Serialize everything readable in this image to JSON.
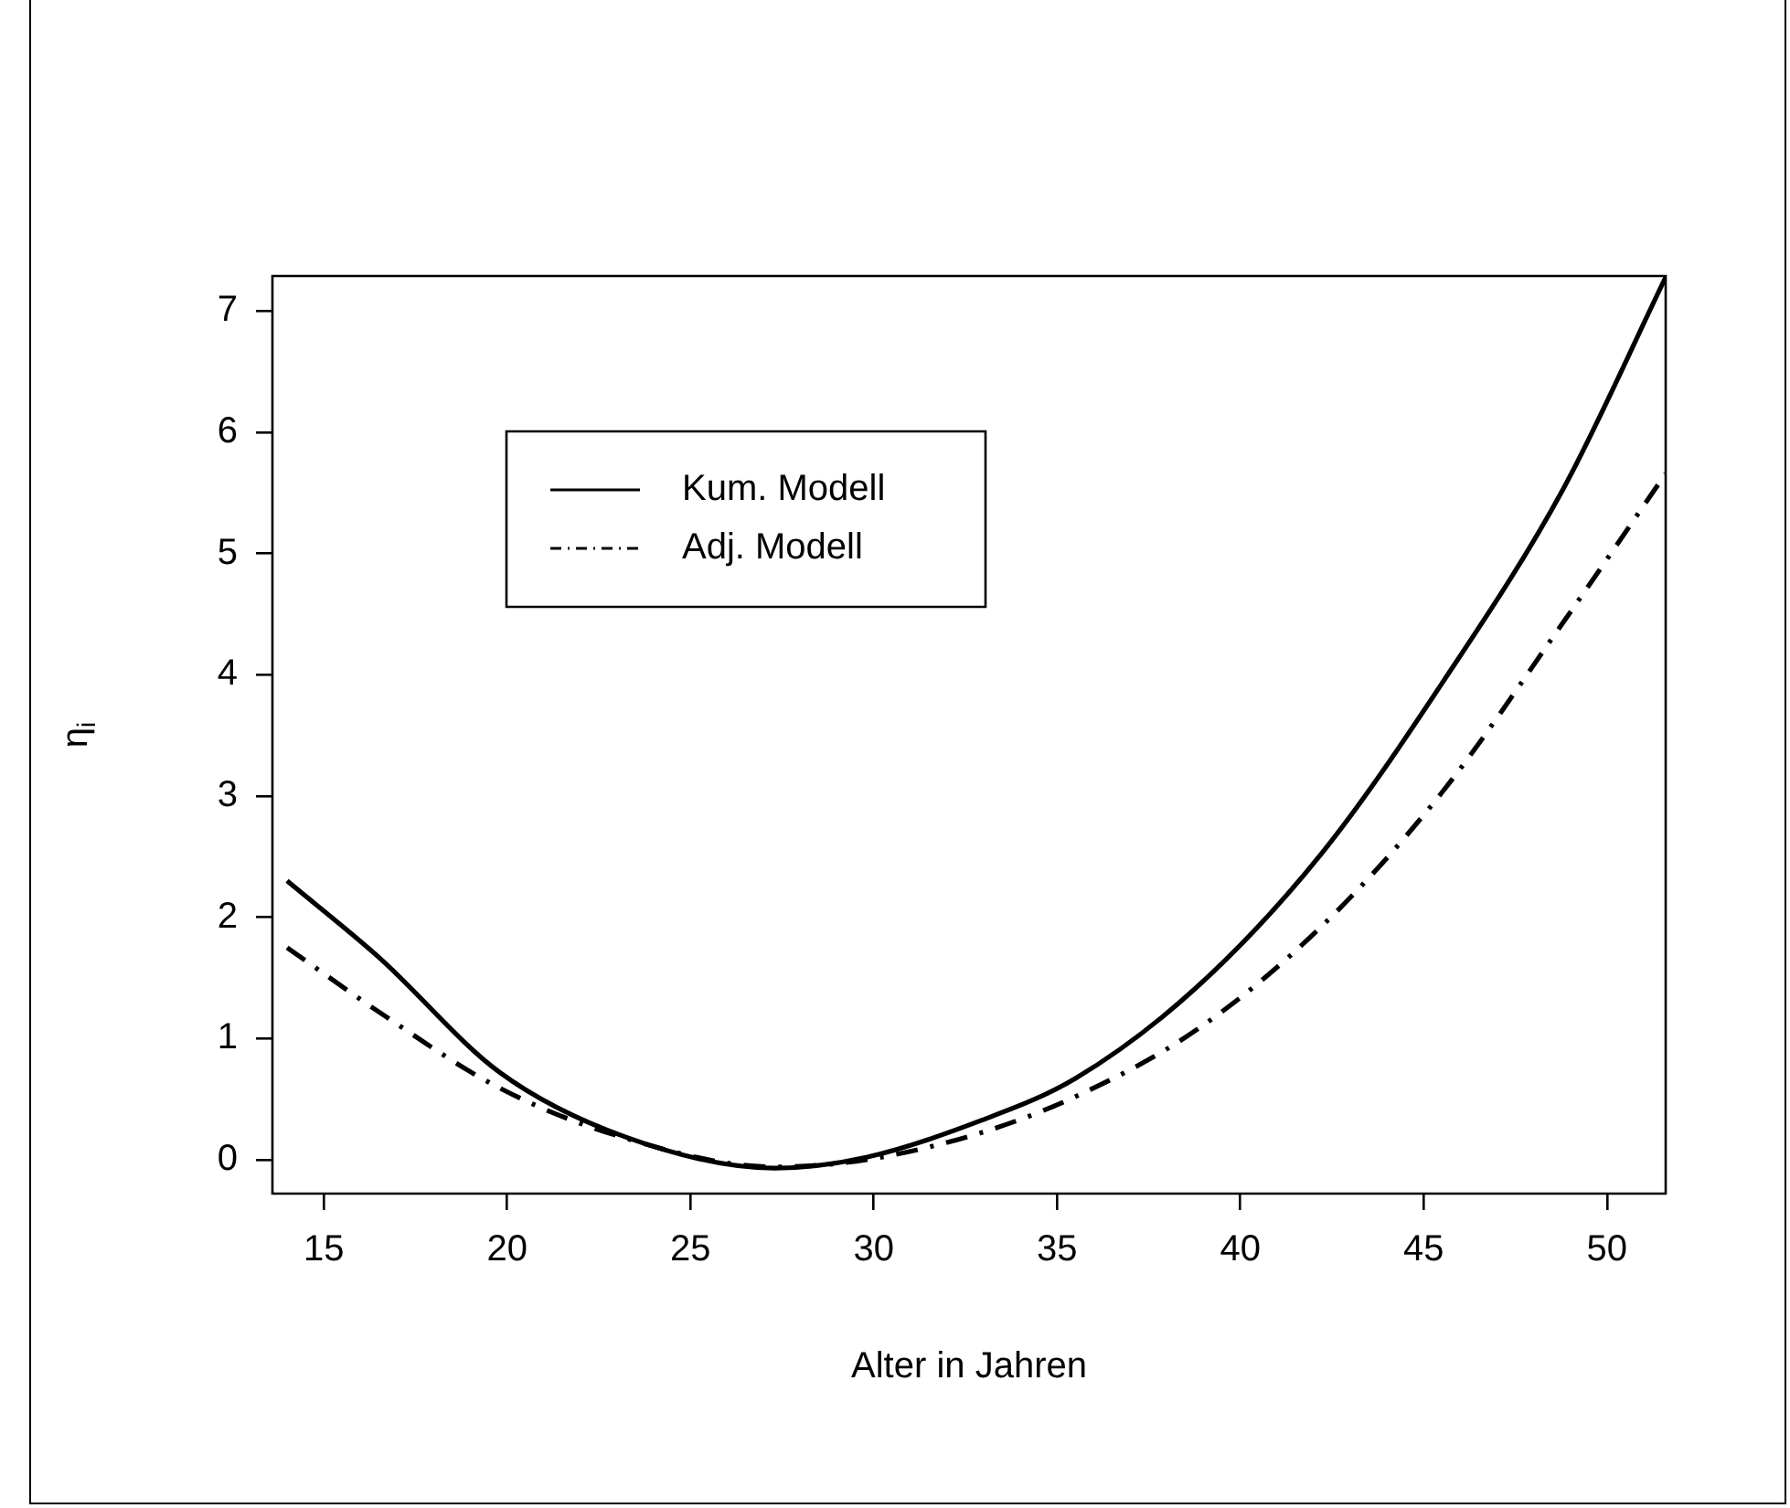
{
  "chart_data": {
    "type": "line",
    "xlabel": "Alter in Jahren",
    "ylabel": "η$_{i}$",
    "xlim": [
      13.6,
      51.6
    ],
    "ylim": [
      -0.28,
      7.29
    ],
    "xticks": [
      15,
      20,
      25,
      30,
      35,
      40,
      45,
      50
    ],
    "yticks": [
      0,
      1,
      2,
      3,
      4,
      5,
      6,
      7
    ],
    "grid": false,
    "legend": "top left",
    "marker": "none",
    "series": [
      {
        "name": "Kum. Modell",
        "color": "#000000",
        "line_style": "solid",
        "x": [
          14.0,
          16.5,
          19.8,
          23.2,
          27.3,
          29.8,
          32.9,
          35.5,
          38.8,
          42.2,
          45.5,
          48.8,
          51.6
        ],
        "values": [
          2.3,
          1.67,
          0.72,
          0.19,
          -0.07,
          0.02,
          0.32,
          0.67,
          1.42,
          2.52,
          3.93,
          5.53,
          7.28
        ]
      },
      {
        "name": "Adj. Modell",
        "color": "#000000",
        "line_style": "dashed",
        "x": [
          14.0,
          16.5,
          19.8,
          23.2,
          27.3,
          29.8,
          32.9,
          35.5,
          38.8,
          42.2,
          45.5,
          48.8,
          51.6
        ],
        "values": [
          1.75,
          1.22,
          0.59,
          0.18,
          -0.06,
          0.0,
          0.22,
          0.52,
          1.07,
          1.92,
          3.03,
          4.43,
          5.66
        ]
      }
    ]
  }
}
